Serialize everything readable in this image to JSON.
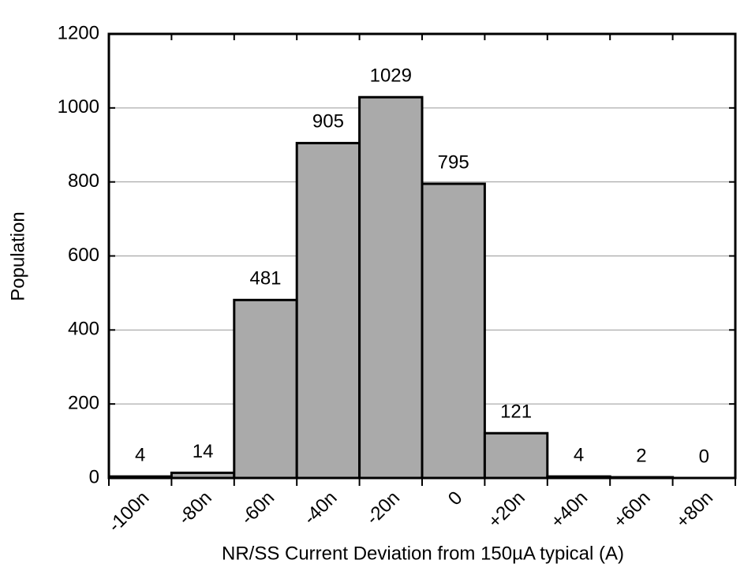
{
  "chart_data": {
    "type": "bar",
    "x_label": "NR/SS Current Deviation from 150µA typical (A)",
    "y_label": "Population",
    "categories": [
      "-100n",
      "-80n",
      "-60n",
      "-40n",
      "-20n",
      "0",
      "+20n",
      "+40n",
      "+60n",
      "+80n"
    ],
    "values": [
      4,
      14,
      481,
      905,
      1029,
      795,
      121,
      4,
      2,
      0
    ],
    "color": "#aaaaaa",
    "ylim": [
      0,
      1200
    ],
    "yticks": [
      0,
      200,
      400,
      600,
      800,
      1000,
      1200
    ],
    "grid": true
  }
}
